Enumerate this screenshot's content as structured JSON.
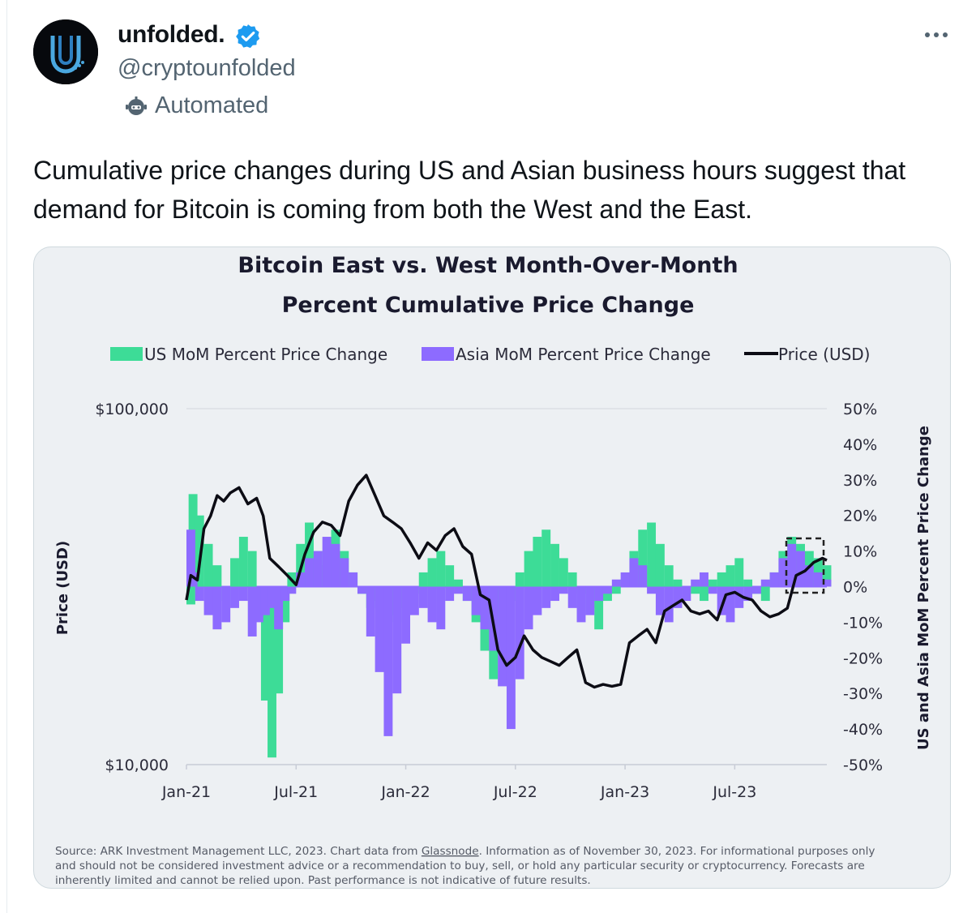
{
  "tweet": {
    "display_name": "unfolded.",
    "handle": "@cryptounfolded",
    "automated_label": "Automated",
    "text": "Cumulative price changes during US and Asian business hours suggest that demand for Bitcoin is coming from both the West and the East.",
    "verified_icon": "verified-badge-icon",
    "more_icon": "more-options-icon"
  },
  "colors": {
    "us": "#3ddc97",
    "asia": "#8d6bff",
    "price": "#0c0c14",
    "verified": "#1d9bf0"
  },
  "chart_data": {
    "type": "bar",
    "title_line1": "Bitcoin East vs. West Month-Over-Month",
    "title_line2": "Percent Cumulative Price Change",
    "legend": [
      "US MoM Percent Price Change",
      "Asia MoM Percent Price Change",
      "Price (USD)"
    ],
    "ylabel_left": "Price (USD)",
    "ylabel_right": "US and Asia MoM Percent Price Change",
    "left_axis": {
      "scale": "log",
      "range": [
        10000,
        100000
      ],
      "ticks": [
        "$100,000",
        "$10,000"
      ]
    },
    "right_axis": {
      "range": [
        -50,
        50
      ],
      "ticks": [
        "50%",
        "40%",
        "30%",
        "20%",
        "10%",
        "0%",
        "-10%",
        "-20%",
        "-30%",
        "-40%",
        "-50%"
      ]
    },
    "x_range": [
      2021.0,
      2023.92
    ],
    "x_ticks": [
      {
        "label": "Jan-21",
        "x": 2021.0
      },
      {
        "label": "Jul-21",
        "x": 2021.5
      },
      {
        "label": "Jan-22",
        "x": 2022.0
      },
      {
        "label": "Jul-22",
        "x": 2022.5
      },
      {
        "label": "Jan-23",
        "x": 2023.0
      },
      {
        "label": "Jul-23",
        "x": 2023.5
      }
    ],
    "us_series": {
      "name": "US MoM Percent Price Change",
      "x": [
        2021.0,
        2021.03,
        2021.06,
        2021.1,
        2021.14,
        2021.18,
        2021.22,
        2021.26,
        2021.3,
        2021.33,
        2021.36,
        2021.39,
        2021.42,
        2021.45,
        2021.48,
        2021.52,
        2021.56,
        2021.6,
        2021.64,
        2021.68,
        2021.72,
        2021.76,
        2021.8,
        2021.84,
        2021.88,
        2021.92,
        2021.96,
        2022.0,
        2022.04,
        2022.08,
        2022.12,
        2022.16,
        2022.2,
        2022.24,
        2022.28,
        2022.32,
        2022.36,
        2022.4,
        2022.44,
        2022.48,
        2022.52,
        2022.56,
        2022.6,
        2022.64,
        2022.68,
        2022.72,
        2022.76,
        2022.8,
        2022.84,
        2022.88,
        2022.92,
        2022.96,
        2023.0,
        2023.04,
        2023.08,
        2023.12,
        2023.16,
        2023.2,
        2023.24,
        2023.28,
        2023.32,
        2023.36,
        2023.4,
        2023.44,
        2023.48,
        2023.52,
        2023.56,
        2023.6,
        2023.64,
        2023.68,
        2023.72,
        2023.76,
        2023.8,
        2023.84,
        2023.88,
        2023.92
      ],
      "values": [
        -5,
        26,
        20,
        12,
        6,
        -4,
        8,
        14,
        10,
        -8,
        -32,
        -48,
        -30,
        -10,
        4,
        12,
        18,
        10,
        6,
        16,
        10,
        4,
        -2,
        -6,
        -4,
        -8,
        -10,
        -6,
        -2,
        4,
        8,
        10,
        6,
        2,
        -4,
        -10,
        -18,
        -26,
        -12,
        -4,
        4,
        10,
        14,
        16,
        12,
        8,
        4,
        -2,
        -6,
        -12,
        -4,
        -2,
        2,
        10,
        16,
        18,
        12,
        6,
        2,
        0,
        -2,
        -4,
        2,
        4,
        6,
        8,
        2,
        -2,
        -4,
        4,
        10,
        14,
        12,
        10,
        8,
        6
      ]
    },
    "asia_series": {
      "name": "Asia MoM Percent Price Change",
      "x": [
        2021.0,
        2021.03,
        2021.06,
        2021.1,
        2021.14,
        2021.18,
        2021.22,
        2021.26,
        2021.3,
        2021.33,
        2021.36,
        2021.39,
        2021.42,
        2021.45,
        2021.48,
        2021.52,
        2021.56,
        2021.6,
        2021.64,
        2021.68,
        2021.72,
        2021.76,
        2021.8,
        2021.84,
        2021.88,
        2021.92,
        2021.96,
        2022.0,
        2022.04,
        2022.08,
        2022.12,
        2022.16,
        2022.2,
        2022.24,
        2022.28,
        2022.32,
        2022.36,
        2022.4,
        2022.44,
        2022.48,
        2022.52,
        2022.56,
        2022.6,
        2022.64,
        2022.68,
        2022.72,
        2022.76,
        2022.8,
        2022.84,
        2022.88,
        2022.92,
        2022.96,
        2023.0,
        2023.04,
        2023.08,
        2023.12,
        2023.16,
        2023.2,
        2023.24,
        2023.28,
        2023.32,
        2023.36,
        2023.4,
        2023.44,
        2023.48,
        2023.52,
        2023.56,
        2023.6,
        2023.64,
        2023.68,
        2023.72,
        2023.76,
        2023.8,
        2023.84,
        2023.88,
        2023.92
      ],
      "values": [
        16,
        4,
        -4,
        -8,
        -12,
        -10,
        -6,
        -4,
        -14,
        -10,
        -8,
        -6,
        -12,
        -4,
        -2,
        4,
        8,
        10,
        14,
        12,
        8,
        4,
        -2,
        -14,
        -24,
        -42,
        -30,
        -16,
        -8,
        -6,
        -10,
        -12,
        -4,
        -2,
        -4,
        -8,
        -12,
        -18,
        -28,
        -40,
        -26,
        -12,
        -8,
        -6,
        -4,
        -2,
        -6,
        -10,
        -8,
        -4,
        -2,
        2,
        4,
        8,
        6,
        -2,
        -8,
        -10,
        -6,
        -4,
        2,
        4,
        -2,
        -8,
        -10,
        -6,
        -4,
        -2,
        2,
        4,
        8,
        12,
        10,
        6,
        4,
        2
      ]
    },
    "price_series": {
      "name": "Price (USD)",
      "x": [
        2021.0,
        2021.02,
        2021.05,
        2021.08,
        2021.11,
        2021.14,
        2021.17,
        2021.2,
        2021.24,
        2021.28,
        2021.32,
        2021.35,
        2021.38,
        2021.42,
        2021.46,
        2021.5,
        2021.54,
        2021.58,
        2021.62,
        2021.66,
        2021.7,
        2021.74,
        2021.78,
        2021.82,
        2021.86,
        2021.9,
        2021.94,
        2021.98,
        2022.02,
        2022.06,
        2022.1,
        2022.14,
        2022.18,
        2022.22,
        2022.26,
        2022.3,
        2022.34,
        2022.38,
        2022.42,
        2022.46,
        2022.5,
        2022.54,
        2022.58,
        2022.62,
        2022.66,
        2022.7,
        2022.74,
        2022.78,
        2022.82,
        2022.86,
        2022.9,
        2022.94,
        2022.98,
        2023.02,
        2023.06,
        2023.1,
        2023.14,
        2023.18,
        2023.22,
        2023.26,
        2023.3,
        2023.34,
        2023.38,
        2023.42,
        2023.46,
        2023.5,
        2023.54,
        2023.58,
        2023.62,
        2023.66,
        2023.7,
        2023.74,
        2023.78,
        2023.82,
        2023.86,
        2023.9,
        2023.92
      ],
      "values": [
        29000,
        34000,
        33000,
        46000,
        50000,
        57000,
        55000,
        58000,
        60000,
        54000,
        56000,
        50000,
        38000,
        36000,
        34000,
        32000,
        39000,
        45000,
        48000,
        47000,
        44000,
        55000,
        61000,
        65000,
        57000,
        50000,
        48000,
        46000,
        42000,
        38000,
        42000,
        40000,
        44000,
        46000,
        41000,
        39000,
        30000,
        29000,
        21000,
        19000,
        20000,
        23000,
        21000,
        20000,
        19500,
        19000,
        20000,
        21000,
        17000,
        16500,
        16800,
        16600,
        16800,
        22000,
        23000,
        24000,
        22000,
        27000,
        28000,
        29000,
        27000,
        26500,
        27000,
        25500,
        30000,
        30500,
        29500,
        29000,
        27000,
        26000,
        26500,
        27500,
        34000,
        35000,
        37000,
        38000,
        37500
      ]
    },
    "source": {
      "line1_a": "Source: ARK Investment Management LLC, 2023. Chart data from ",
      "line1_link": "Glassnode",
      "line1_b": ". Information as of November 30, 2023. For informational purposes only",
      "line2": "and should not be considered investment advice or a recommendation to buy, sell, or hold any particular security or cryptocurrency. Forecasts are",
      "line3": "inherently limited and cannot be relied upon. Past performance is not indicative of future results."
    }
  }
}
